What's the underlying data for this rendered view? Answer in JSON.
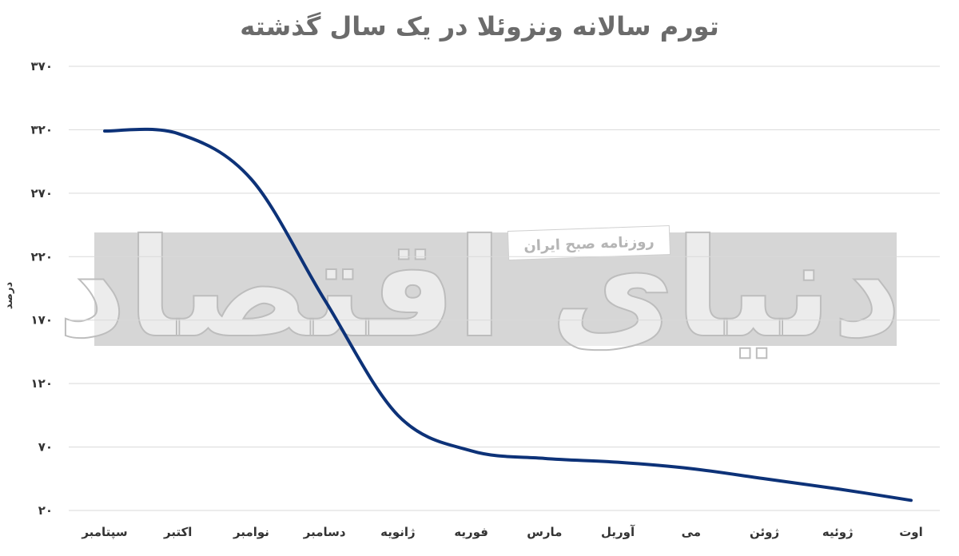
{
  "chart_data": {
    "type": "line",
    "title": "تورم سالانه ونزوئلا در یک سال گذشته",
    "ylabel": "درصد",
    "xlabel": "",
    "categories": [
      "سپتامبر",
      "اکتبر",
      "نوامبر",
      "دسامبر",
      "ژانویه",
      "فوریه",
      "مارس",
      "آوریل",
      "می",
      "ژوئن",
      "ژوئیه",
      "اوت"
    ],
    "y_ticks": [
      20,
      70,
      120,
      170,
      220,
      270,
      320,
      370
    ],
    "y_tick_labels": [
      "۲۰",
      "۷۰",
      "۱۲۰",
      "۱۷۰",
      "۲۲۰",
      "۲۷۰",
      "۳۲۰",
      "۳۷۰"
    ],
    "ylim": [
      20,
      370
    ],
    "grid": true,
    "legend": "none",
    "series": [
      {
        "values": [
          319,
          317,
          281,
          186,
          95,
          67,
          61,
          58,
          53,
          45,
          37,
          28
        ],
        "color": "#0d3278"
      }
    ]
  },
  "watermark": {
    "logo_text": "دنیای اقتصاد",
    "tagline": "روزنامه صبح ایران"
  },
  "colors": {
    "line": "#0d3278",
    "grid": "#d9d9d9",
    "watermark_band": "#d6d6d6",
    "title": "#6b6b6b"
  }
}
